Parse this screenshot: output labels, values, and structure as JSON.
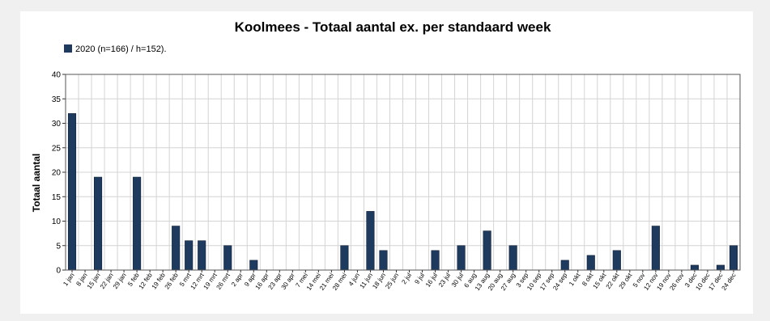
{
  "chart_data": {
    "type": "bar",
    "title": "Koolmees - Totaal aantal ex. per standaard week",
    "ylabel": "Totaal aantal",
    "xlabel": "",
    "ylim": [
      0,
      40
    ],
    "yticks": [
      0,
      5,
      10,
      15,
      20,
      25,
      30,
      35,
      40
    ],
    "grid": true,
    "legend_position": "top-left",
    "categories": [
      "1 jan",
      "8 jan",
      "15 jan",
      "22 jan",
      "29 jan",
      "5 feb",
      "12 feb",
      "19 feb",
      "26 feb",
      "5 mrt",
      "12 mrt",
      "19 mrt",
      "26 mrt",
      "2 apr",
      "9 apr",
      "16 apr",
      "23 apr",
      "30 apr",
      "7 mei",
      "14 mei",
      "21 mei",
      "28 mei",
      "4 jun",
      "11 jun",
      "18 jun",
      "25 jun",
      "2 jul",
      "9 jul",
      "16 jul",
      "23 jul",
      "30 jul",
      "6 aug",
      "13 aug",
      "20 aug",
      "27 aug",
      "3 sep",
      "10 sep",
      "17 sep",
      "24 sep",
      "1 okt",
      "8 okt",
      "15 okt",
      "22 okt",
      "29 okt",
      "5 nov",
      "12 nov",
      "19 nov",
      "26 nov",
      "3 dec",
      "10 dec",
      "17 dec",
      "24 dec"
    ],
    "series": [
      {
        "name": "2020 (n=166) / h=152).",
        "color": "#1f3a5f",
        "values": [
          32,
          0,
          19,
          0,
          0,
          19,
          0,
          0,
          9,
          6,
          6,
          0,
          5,
          0,
          2,
          0,
          0,
          0,
          0,
          0,
          0,
          5,
          0,
          12,
          4,
          0,
          0,
          0,
          4,
          0,
          5,
          0,
          8,
          0,
          5,
          0,
          0,
          0,
          2,
          0,
          3,
          0,
          4,
          0,
          0,
          9,
          0,
          0,
          1,
          0,
          1,
          5
        ]
      }
    ]
  }
}
